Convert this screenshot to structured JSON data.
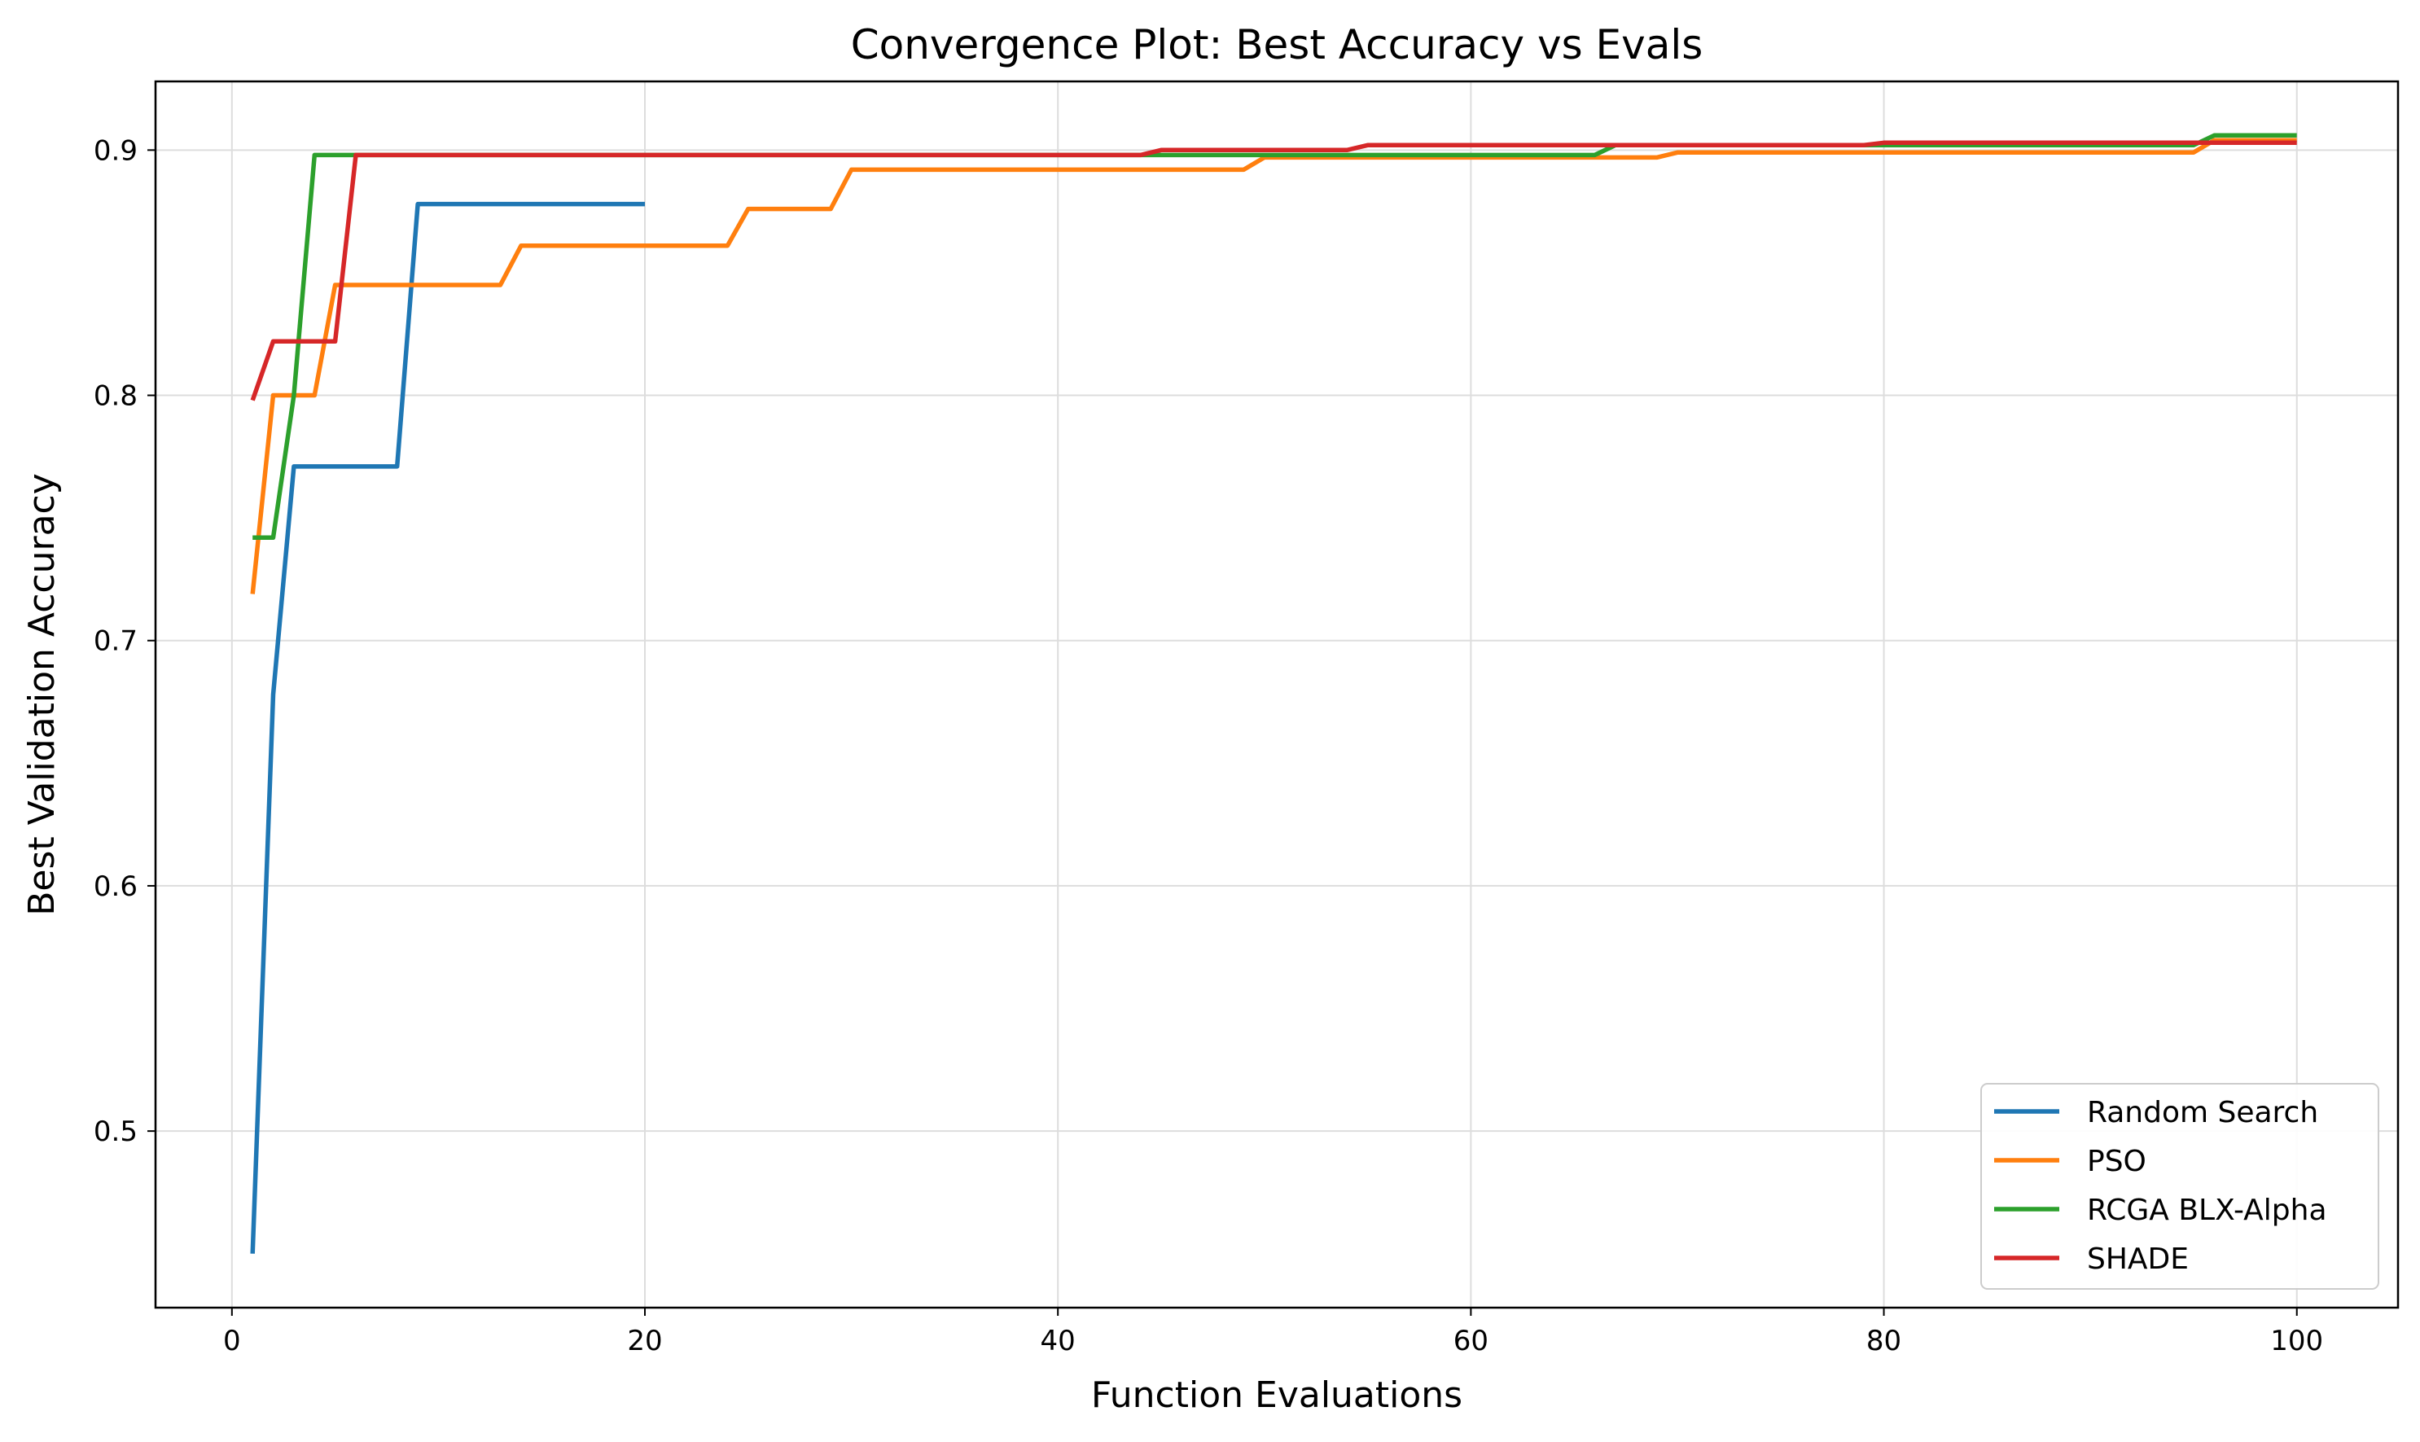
{
  "chart_data": {
    "type": "line",
    "title": "Convergence Plot: Best Accuracy vs Evals",
    "xlabel": "Function Evaluations",
    "ylabel": "Best Validation Accuracy",
    "xlim": [
      -3.7,
      104.9
    ],
    "ylim": [
      0.428,
      0.928
    ],
    "xticks": [
      0,
      20,
      40,
      60,
      80,
      100
    ],
    "yticks": [
      0.5,
      0.6,
      0.7,
      0.8,
      0.9
    ],
    "grid": true,
    "legend_position": "lower-right",
    "series": [
      {
        "name": "Random Search",
        "color": "#1f77b4",
        "points": [
          [
            1,
            0.45
          ],
          [
            2,
            0.678
          ],
          [
            3,
            0.771
          ],
          [
            8,
            0.771
          ],
          [
            9,
            0.878
          ],
          [
            20,
            0.878
          ]
        ]
      },
      {
        "name": "PSO",
        "color": "#ff7f0e",
        "points": [
          [
            1,
            0.719
          ],
          [
            2,
            0.8
          ],
          [
            4,
            0.8
          ],
          [
            5,
            0.845
          ],
          [
            13,
            0.845
          ],
          [
            14,
            0.861
          ],
          [
            24,
            0.861
          ],
          [
            25,
            0.876
          ],
          [
            29,
            0.876
          ],
          [
            30,
            0.892
          ],
          [
            49,
            0.892
          ],
          [
            50,
            0.897
          ],
          [
            69,
            0.897
          ],
          [
            70,
            0.899
          ],
          [
            95,
            0.899
          ],
          [
            96,
            0.904
          ],
          [
            100,
            0.904
          ]
        ]
      },
      {
        "name": "RCGA BLX-Alpha",
        "color": "#2ca02c",
        "points": [
          [
            1,
            0.742
          ],
          [
            2,
            0.742
          ],
          [
            3,
            0.8
          ],
          [
            4,
            0.898
          ],
          [
            66,
            0.898
          ],
          [
            67,
            0.902
          ],
          [
            95,
            0.902
          ],
          [
            96,
            0.906
          ],
          [
            100,
            0.906
          ]
        ]
      },
      {
        "name": "SHADE",
        "color": "#d62728",
        "points": [
          [
            1,
            0.798
          ],
          [
            2,
            0.822
          ],
          [
            5,
            0.822
          ],
          [
            6,
            0.898
          ],
          [
            44,
            0.898
          ],
          [
            45,
            0.9
          ],
          [
            54,
            0.9
          ],
          [
            55,
            0.902
          ],
          [
            79,
            0.902
          ],
          [
            80,
            0.903
          ],
          [
            100,
            0.903
          ]
        ]
      }
    ]
  }
}
